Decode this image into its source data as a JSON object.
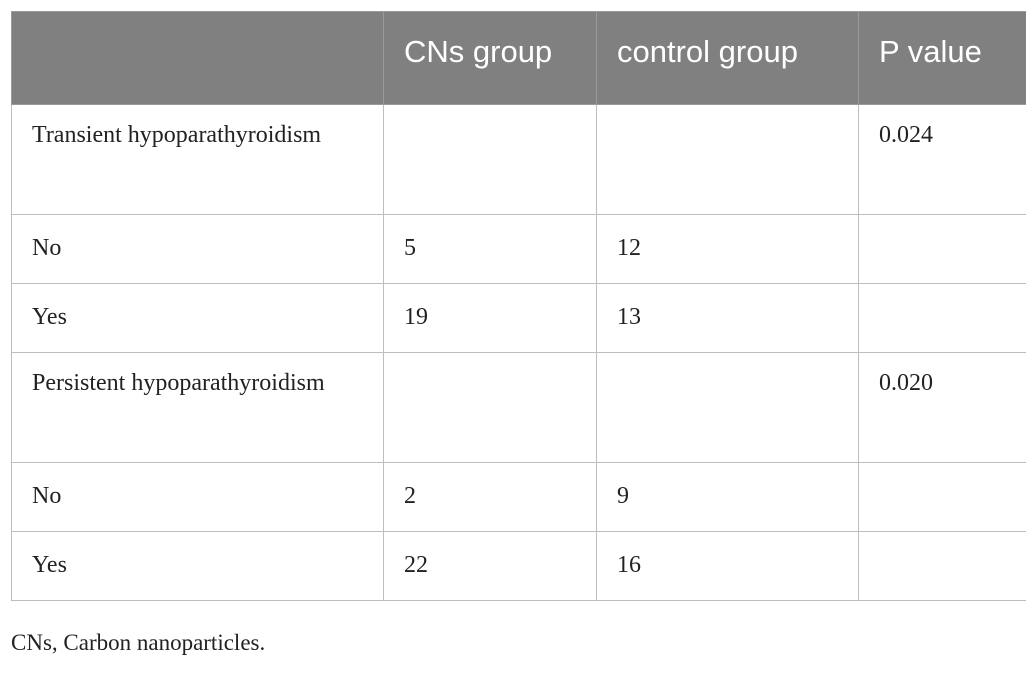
{
  "table": {
    "headers": [
      "",
      "CNs group",
      "control group",
      "P value"
    ],
    "rows": [
      [
        "Transient hypoparathyroidism",
        "",
        "",
        "0.024"
      ],
      [
        "No",
        "5",
        "12",
        ""
      ],
      [
        "Yes",
        "19",
        "13",
        ""
      ],
      [
        "Persistent hypoparathyroidism",
        "",
        "",
        "0.020"
      ],
      [
        "No",
        "2",
        "9",
        ""
      ],
      [
        "Yes",
        "22",
        "16",
        ""
      ]
    ]
  },
  "footnote": "CNs, Carbon nanoparticles.",
  "colors": {
    "header_background": "#808080",
    "header_text": "#ffffff",
    "border": "#bdbdbd"
  }
}
